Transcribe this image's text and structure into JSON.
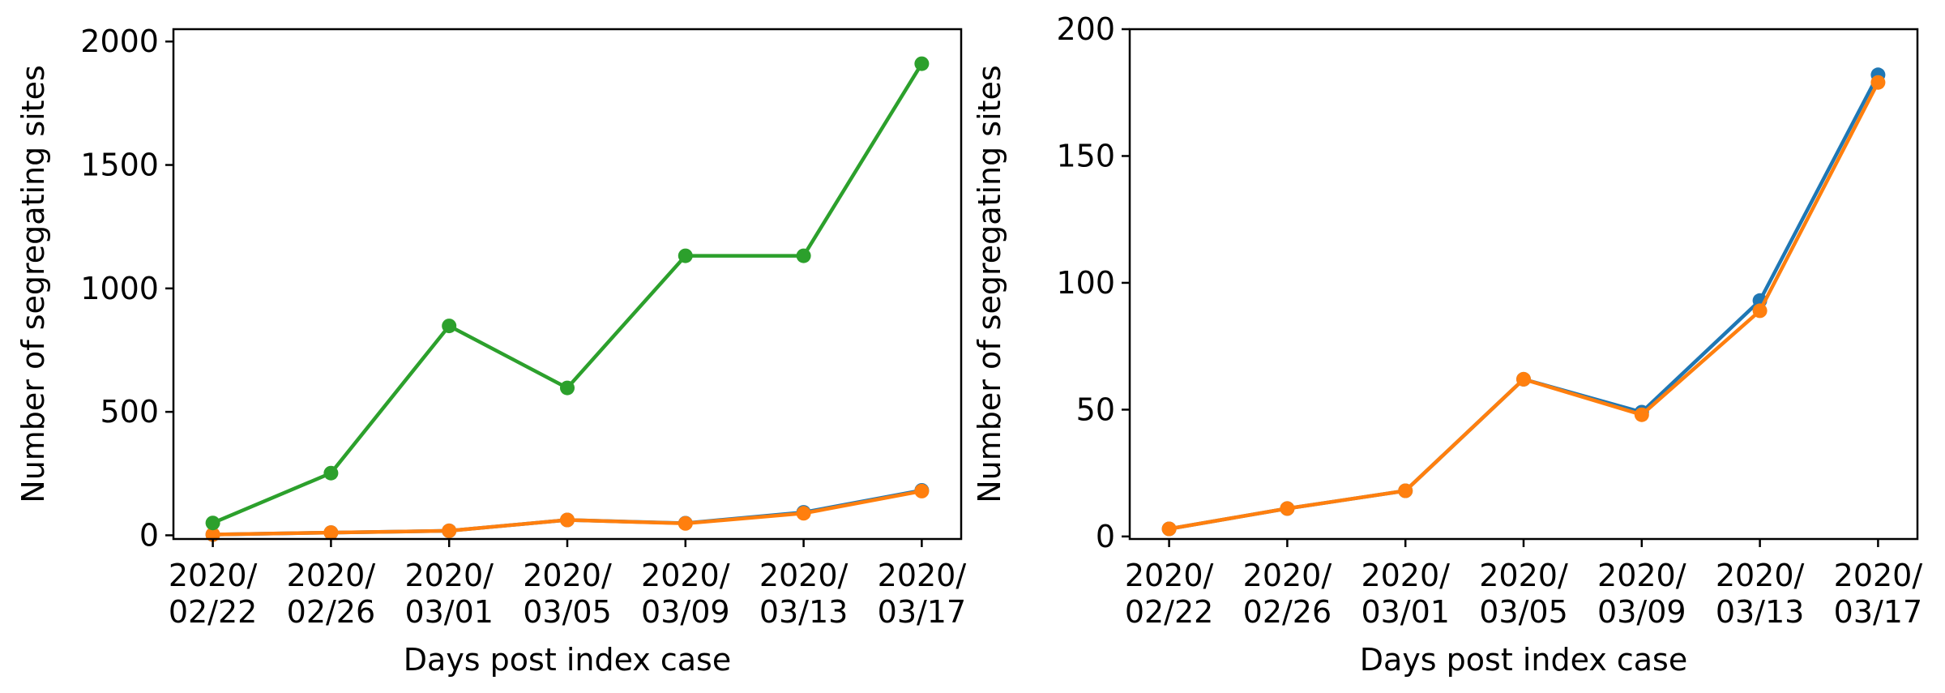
{
  "chart_data": [
    {
      "type": "line",
      "categories": [
        "2020/02/22",
        "2020/02/26",
        "2020/03/01",
        "2020/03/05",
        "2020/03/09",
        "2020/03/13",
        "2020/03/17"
      ],
      "category_lines": [
        [
          "2020/",
          "02/22"
        ],
        [
          "2020/",
          "02/26"
        ],
        [
          "2020/",
          "03/01"
        ],
        [
          "2020/",
          "03/05"
        ],
        [
          "2020/",
          "03/09"
        ],
        [
          "2020/",
          "03/13"
        ],
        [
          "2020/",
          "03/17"
        ]
      ],
      "xlabel": "Days post index case",
      "ylabel": "Number of segregating sites",
      "ylim": [
        -15,
        2050
      ],
      "yticks": [
        0,
        500,
        1000,
        1500,
        2000
      ],
      "ytick_labels": [
        "0",
        "500",
        "1000",
        "1500",
        "2000"
      ],
      "grid": false,
      "series": [
        {
          "color": "#1f77b4",
          "values": [
            3,
            11,
            18,
            62,
            49,
            93,
            182
          ]
        },
        {
          "color": "#ff7f0e",
          "values": [
            3,
            11,
            18,
            62,
            48,
            89,
            179
          ]
        },
        {
          "color": "#2ca02c",
          "values": [
            50,
            252,
            848,
            597,
            1132,
            1132,
            1910
          ]
        }
      ]
    },
    {
      "type": "line",
      "categories": [
        "2020/02/22",
        "2020/02/26",
        "2020/03/01",
        "2020/03/05",
        "2020/03/09",
        "2020/03/13",
        "2020/03/17"
      ],
      "category_lines": [
        [
          "2020/",
          "02/22"
        ],
        [
          "2020/",
          "02/26"
        ],
        [
          "2020/",
          "03/01"
        ],
        [
          "2020/",
          "03/05"
        ],
        [
          "2020/",
          "03/09"
        ],
        [
          "2020/",
          "03/13"
        ],
        [
          "2020/",
          "03/17"
        ]
      ],
      "xlabel": "Days post index case",
      "ylabel": "Number of segregating sites",
      "ylim": [
        -1,
        200
      ],
      "yticks": [
        0,
        50,
        100,
        150,
        200
      ],
      "ytick_labels": [
        "0",
        "50",
        "100",
        "150",
        "200"
      ],
      "grid": false,
      "series": [
        {
          "color": "#1f77b4",
          "values": [
            3,
            11,
            18,
            62,
            49,
            93,
            182
          ]
        },
        {
          "color": "#ff7f0e",
          "values": [
            3,
            11,
            18,
            62,
            48,
            89,
            179
          ]
        }
      ]
    }
  ]
}
